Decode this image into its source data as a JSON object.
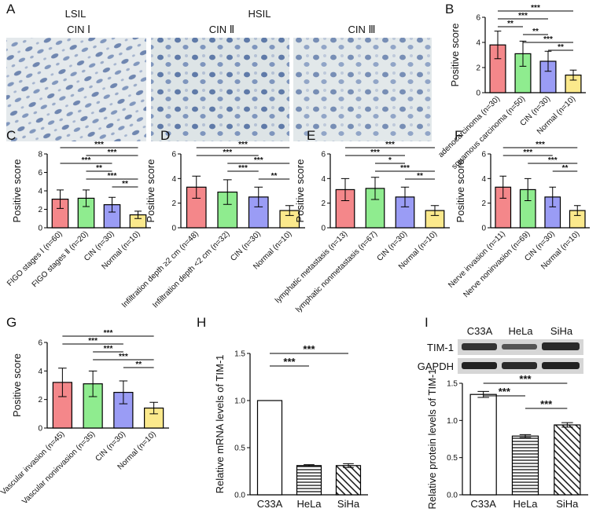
{
  "panel_a": {
    "letter": "A",
    "groups": [
      "LSIL",
      "HSIL"
    ],
    "images": [
      "CIN Ⅰ",
      "CIN Ⅱ",
      "CIN Ⅲ"
    ]
  },
  "chart_data": [
    {
      "type": "bar",
      "panel": "B",
      "ylabel": "Positive score",
      "ylim": [
        0,
        6
      ],
      "yticks": [
        0,
        2,
        4,
        6
      ],
      "categories": [
        "adenocarcinoma (n=30)",
        "squamous carcinoma (n=50)",
        "CIN (n=30)",
        "Normal (n=10)"
      ],
      "values": [
        3.8,
        3.1,
        2.5,
        1.4
      ],
      "errors": [
        1.1,
        1.0,
        0.8,
        0.4
      ],
      "bar_fills": [
        "#f4878a",
        "#8fec8f",
        "#9a9cf5",
        "#fbe98c"
      ],
      "annotations": [
        {
          "text": "***",
          "pair": [
            0,
            3
          ]
        },
        {
          "text": "***",
          "pair": [
            0,
            2
          ]
        },
        {
          "text": "**",
          "pair": [
            0,
            1
          ]
        },
        {
          "text": "**",
          "pair": [
            1,
            2
          ]
        },
        {
          "text": "***",
          "pair": [
            1,
            3
          ]
        },
        {
          "text": "**",
          "pair": [
            2,
            3
          ]
        }
      ]
    },
    {
      "type": "bar",
      "panel": "C",
      "ylabel": "Positive score",
      "ylim": [
        0,
        8
      ],
      "yticks": [
        0,
        2,
        4,
        6,
        8
      ],
      "categories": [
        "FIGO stages Ⅰ (n=60)",
        "FIGO stages Ⅱ (n=20)",
        "CIN (n=30)",
        "Normal (n=10)"
      ],
      "values": [
        3.1,
        3.2,
        2.5,
        1.4
      ],
      "errors": [
        1.0,
        0.9,
        0.8,
        0.4
      ],
      "bar_fills": [
        "#f4878a",
        "#8fec8f",
        "#9a9cf5",
        "#fbe98c"
      ],
      "annotations": [
        {
          "text": "***",
          "pair": [
            0,
            3
          ]
        },
        {
          "text": "***",
          "pair": [
            1,
            3
          ]
        },
        {
          "text": "***",
          "pair": [
            0,
            2
          ]
        },
        {
          "text": "**",
          "pair": [
            1,
            2
          ]
        },
        {
          "text": "***",
          "pair": [
            1,
            3
          ]
        },
        {
          "text": "**",
          "pair": [
            2,
            3
          ]
        }
      ]
    },
    {
      "type": "bar",
      "panel": "D",
      "ylabel": "Positive score",
      "ylim": [
        0,
        6
      ],
      "yticks": [
        0,
        2,
        4,
        6
      ],
      "categories": [
        "Infiltration depth ≥2 cm (n=48)",
        "Infiltration depth <2 cm (n=32)",
        "CIN (n=30)",
        "Normal (n=10)"
      ],
      "values": [
        3.3,
        2.9,
        2.5,
        1.4
      ],
      "errors": [
        0.9,
        1.0,
        0.8,
        0.4
      ],
      "bar_fills": [
        "#f4878a",
        "#8fec8f",
        "#9a9cf5",
        "#fbe98c"
      ],
      "annotations": [
        {
          "text": "***",
          "pair": [
            0,
            3
          ]
        },
        {
          "text": "***",
          "pair": [
            0,
            2
          ]
        },
        {
          "text": "***",
          "pair": [
            1,
            3
          ]
        },
        {
          "text": "***",
          "pair": [
            1,
            2
          ]
        },
        {
          "text": "**",
          "pair": [
            2,
            3
          ]
        }
      ]
    },
    {
      "type": "bar",
      "panel": "E",
      "ylabel": "Positive score",
      "ylim": [
        0,
        6
      ],
      "yticks": [
        0,
        2,
        4,
        6
      ],
      "categories": [
        "lymphatic metastasis (n=13)",
        "lymphatic nonmetastasis (n=67)",
        "CIN (n=30)",
        "Normal (n=10)"
      ],
      "values": [
        3.1,
        3.2,
        2.5,
        1.4
      ],
      "errors": [
        0.9,
        0.9,
        0.8,
        0.4
      ],
      "bar_fills": [
        "#f4878a",
        "#8fec8f",
        "#9a9cf5",
        "#fbe98c"
      ],
      "annotations": [
        {
          "text": "***",
          "pair": [
            0,
            3
          ]
        },
        {
          "text": "***",
          "pair": [
            0,
            2
          ]
        },
        {
          "text": "*",
          "pair": [
            1,
            2
          ]
        },
        {
          "text": "***",
          "pair": [
            1,
            3
          ]
        },
        {
          "text": "**",
          "pair": [
            2,
            3
          ]
        }
      ]
    },
    {
      "type": "bar",
      "panel": "F",
      "ylabel": "Positive score",
      "ylim": [
        0,
        6
      ],
      "yticks": [
        0,
        2,
        4,
        6
      ],
      "categories": [
        "Nerve invasion (n=11)",
        "Nerve noninvasion (n=69)",
        "CIN (n=30)",
        "Normal (n=10)"
      ],
      "values": [
        3.3,
        3.1,
        2.5,
        1.4
      ],
      "errors": [
        0.9,
        0.9,
        0.8,
        0.4
      ],
      "bar_fills": [
        "#f4878a",
        "#8fec8f",
        "#9a9cf5",
        "#fbe98c"
      ],
      "annotations": [
        {
          "text": "***",
          "pair": [
            0,
            3
          ]
        },
        {
          "text": "***",
          "pair": [
            0,
            2
          ]
        },
        {
          "text": "***",
          "pair": [
            1,
            3
          ]
        },
        {
          "text": "**",
          "pair": [
            2,
            3
          ]
        }
      ]
    },
    {
      "type": "bar",
      "panel": "G",
      "ylabel": "Positive score",
      "ylim": [
        0,
        6
      ],
      "yticks": [
        0,
        2,
        4,
        6
      ],
      "categories": [
        "Vascular invasion (n=45)",
        "Vascular noninvasion (n=35)",
        "CIN (n=30)",
        "Normal (n=10)"
      ],
      "values": [
        3.2,
        3.1,
        2.5,
        1.4
      ],
      "errors": [
        1.0,
        0.9,
        0.8,
        0.4
      ],
      "bar_fills": [
        "#f4878a",
        "#8fec8f",
        "#9a9cf5",
        "#fbe98c"
      ],
      "annotations": [
        {
          "text": "***",
          "pair": [
            0,
            3
          ]
        },
        {
          "text": "***",
          "pair": [
            0,
            2
          ]
        },
        {
          "text": "***",
          "pair": [
            1,
            2
          ]
        },
        {
          "text": "***",
          "pair": [
            1,
            3
          ]
        },
        {
          "text": "**",
          "pair": [
            2,
            3
          ]
        }
      ]
    },
    {
      "type": "bar",
      "panel": "H",
      "ylabel": "Relative mRNA levels of TIM-1",
      "ylim": [
        0,
        1.5
      ],
      "yticks": [
        {
          "value": 0,
          "label": "0.0"
        },
        0.5,
        {
          "value": 1,
          "label": "1.0"
        },
        1.5
      ],
      "categories": [
        "C33A",
        "HeLa",
        "SiHa"
      ],
      "values": [
        1.0,
        0.31,
        0.31
      ],
      "errors": [
        0,
        0.01,
        0.02
      ],
      "bar_fills": [
        "#ffffff",
        "horizontal-lines",
        "diagonal-lines"
      ],
      "annotations": [
        {
          "text": "***",
          "pair": [
            0,
            2
          ]
        },
        {
          "text": "***",
          "pair": [
            0,
            1
          ]
        }
      ]
    },
    {
      "type": "bar",
      "panel": "I",
      "ylabel": "Relative protein levels of TIM-1",
      "ylim": [
        0,
        1.5
      ],
      "yticks": [
        {
          "value": 0,
          "label": "0.0"
        },
        0.5,
        {
          "value": 1,
          "label": "1.0"
        },
        1.5
      ],
      "categories": [
        "C33A",
        "HeLa",
        "SiHa"
      ],
      "values": [
        1.35,
        0.79,
        0.94
      ],
      "errors": [
        0.04,
        0.02,
        0.03
      ],
      "bar_fills": [
        "#ffffff",
        "horizontal-lines",
        "diagonal-lines"
      ],
      "blot_lanes": [
        "C33A",
        "HeLa",
        "SiHa"
      ],
      "blot_rows": [
        "TIM-1",
        "GAPDH"
      ],
      "annotations": [
        {
          "text": "***",
          "pair": [
            0,
            2
          ]
        },
        {
          "text": "***",
          "pair": [
            0,
            1
          ]
        },
        {
          "text": "***",
          "pair": [
            1,
            2
          ]
        }
      ]
    }
  ]
}
